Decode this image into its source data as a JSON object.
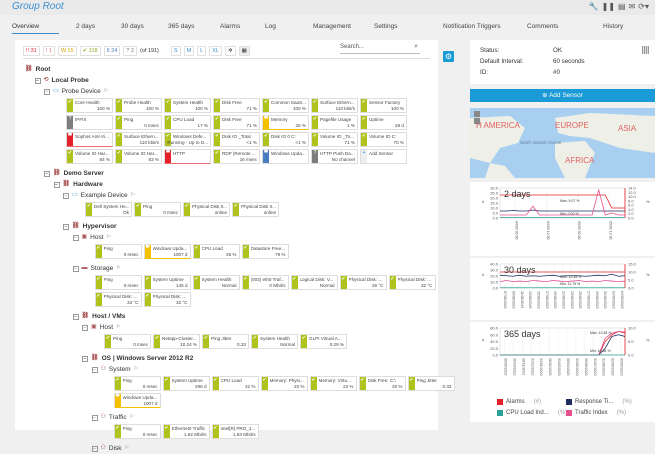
{
  "header": {
    "title": "Group Root",
    "tools": [
      "wrench-icon",
      "pause-icon",
      "export-icon",
      "mail-icon",
      "refresh-icon"
    ]
  },
  "tabs": [
    "Overview",
    "2 days",
    "30 days",
    "365 days",
    "Alarms",
    "Log",
    "Management",
    "Settings",
    "Notification Triggers",
    "Comments",
    "History"
  ],
  "toolbar": {
    "counts": [
      {
        "label": "!! 31",
        "color": "#e4202a"
      },
      {
        "label": "! 1",
        "color": "#e87070"
      },
      {
        "label": "W 15",
        "color": "#d9a400"
      },
      {
        "label": "✔ 118",
        "color": "#8aa51a"
      },
      {
        "label": "II 24",
        "color": "#4a7cc0"
      },
      {
        "label": "? 2",
        "color": "#777"
      }
    ],
    "total": "(of 191)",
    "sizes": [
      "S",
      "M",
      "L",
      "XL"
    ],
    "search_placeholder": "Search..."
  },
  "tree": [
    {
      "label": "Root",
      "depth": 0,
      "icon": "group",
      "bold": true
    },
    {
      "label": "Local Probe",
      "depth": 1,
      "icon": "probe",
      "bold": true
    },
    {
      "label": "Probe Device",
      "depth": 2,
      "icon": "device",
      "flag": true,
      "sensors": [
        [
          "ok",
          "Core Health",
          "100 %"
        ],
        [
          "ok",
          "Probe Health",
          "100 %"
        ],
        [
          "ok",
          "System Health",
          "100 %"
        ],
        [
          "ok",
          "Disk Free",
          "71 %"
        ],
        [
          "ok",
          "Common SaaS...",
          "100 %"
        ],
        [
          "ok",
          "Surface Ethern...",
          "110 kbit/s"
        ],
        [
          "ok",
          "Sensor Factory",
          "100 %"
        ],
        [
          "unknown",
          "IPFIX",
          ""
        ],
        [
          "ok",
          "Ping",
          "0 msec"
        ],
        [
          "ok",
          "CPU Load",
          "17 %"
        ],
        [
          "ok",
          "Disk Free",
          "71 %"
        ],
        [
          "warn",
          "Memory",
          "26 %"
        ],
        [
          "ok",
          "Pagefile Usage",
          "1 %"
        ],
        [
          "ok",
          "Uptime",
          "26 d"
        ],
        [
          "down",
          "Sophos Anti-Vi...",
          ""
        ],
        [
          "ok",
          "Surface Ethern...",
          "110 kbit/s"
        ],
        [
          "ok",
          "Windows Defe...",
          "Running - Up to D..."
        ],
        [
          "ok",
          "Disk IO _Total",
          "<1 %"
        ],
        [
          "ok",
          "Disk IO 0 C:",
          "<1 %"
        ],
        [
          "ok",
          "Volume IO _To...",
          "71 %"
        ],
        [
          "ok",
          "Volume IO C:",
          "70 %"
        ],
        [
          "ok",
          "Volume IO Har...",
          "84 %"
        ],
        [
          "ok",
          "Volume IO Har...",
          "83 %"
        ],
        [
          "down",
          "HTTP",
          ""
        ],
        [
          "ok",
          "RDP (Remote ...",
          "16 msec"
        ],
        [
          "paused",
          "Windows Upda...",
          ""
        ],
        [
          "unknown",
          "HTTP Push Da...",
          "No channel"
        ],
        [
          "add",
          "Add Sensor",
          ""
        ]
      ]
    },
    {
      "label": "Demo Server",
      "depth": 2,
      "icon": "group",
      "bold": true
    },
    {
      "label": "Hardware",
      "depth": 3,
      "icon": "group",
      "bold": true
    },
    {
      "label": "Example Device",
      "depth": 4,
      "icon": "device",
      "flag": true,
      "sensors": [
        [
          "ok",
          "Dell System He...",
          "Ok"
        ],
        [
          "ok",
          "Ping",
          "0 msec"
        ],
        [
          "ok",
          "Physical Disk 0...",
          "online"
        ],
        [
          "ok",
          "Physical Disk 0...",
          "online"
        ]
      ]
    },
    {
      "label": "Hypervisor",
      "depth": 4,
      "icon": "group",
      "bold": true
    },
    {
      "label": "Host",
      "depth": 5,
      "icon": "server",
      "flag": true,
      "sensors": [
        [
          "ok",
          "Ping",
          "0 msec"
        ],
        [
          "warn",
          "Windows Upda...",
          "1007 d"
        ],
        [
          "ok",
          "CPU Load",
          "35 %"
        ],
        [
          "ok",
          "Datastore Free...",
          "79 %"
        ]
      ]
    },
    {
      "label": "Storage",
      "depth": 5,
      "icon": "storage",
      "flag": true,
      "sensors": [
        [
          "ok",
          "Ping",
          "0 msec"
        ],
        [
          "ok",
          "System Uptime",
          "145 d"
        ],
        [
          "ok",
          "System Health",
          "Normal"
        ],
        [
          "ok",
          "(003) eth0 Traf...",
          "0 Mbit/s"
        ],
        [
          "ok",
          "Logical Disk: V...",
          "Normal"
        ],
        [
          "ok",
          "Physical Disk: ...",
          "26 °C"
        ],
        [
          "ok",
          "Physical Disk: ...",
          "32 °C"
        ],
        [
          "ok",
          "Physical Disk: ...",
          "33 °C"
        ],
        [
          "ok",
          "Physical Disk: ...",
          "32 °C"
        ]
      ]
    },
    {
      "label": "Host / VMs",
      "depth": 5,
      "icon": "group",
      "bold": true
    },
    {
      "label": "Host",
      "depth": 6,
      "icon": "server",
      "flag": true,
      "sensors": [
        [
          "ok",
          "Ping",
          "0 msec"
        ],
        [
          "ok",
          "Netapp-Cluster...",
          "10.24 %"
        ],
        [
          "ok",
          "Ping Jitter",
          "0.33"
        ],
        [
          "ok",
          "System Health",
          "Normal"
        ],
        [
          "ok",
          "GLPI Virtual A...",
          "0.29 %"
        ]
      ]
    },
    {
      "label": "OS | Windows Server 2012 R2",
      "depth": 6,
      "icon": "group",
      "bold": true
    },
    {
      "label": "System",
      "depth": 7,
      "icon": "users",
      "flag": true,
      "sensors": [
        [
          "ok",
          "Ping",
          "0 msec"
        ],
        [
          "ok",
          "System Uptime",
          "298 d"
        ],
        [
          "ok",
          "CPU Load",
          "31 %"
        ],
        [
          "ok",
          "Memory: Physi...",
          "20 %"
        ],
        [
          "ok",
          "Memory: Virtu...",
          "22 %"
        ],
        [
          "ok",
          "Disk Free: C:\\",
          "30 %"
        ],
        [
          "ok",
          "Ping Jitter",
          "0.33"
        ],
        [
          "warn",
          "Windows Upda...",
          "1007 d"
        ]
      ]
    },
    {
      "label": "Traffic",
      "depth": 7,
      "icon": "users",
      "flag": true,
      "sensors": [
        [
          "ok",
          "Ping",
          "0 msec"
        ],
        [
          "ok",
          "Ethernet0 Traffic",
          "1.62 Mbit/s"
        ],
        [
          "ok",
          "Intel[R] PRO_1...",
          "1.63 Mbit/s"
        ]
      ]
    },
    {
      "label": "Disk",
      "depth": 7,
      "icon": "users",
      "flag": true
    }
  ],
  "status_colors": {
    "ok": "#b0c21c",
    "warn": "#f5c000",
    "down": "#e4202a",
    "unknown": "#7d7d7d",
    "paused": "#4a7cc0",
    "add": "#eeeeee"
  },
  "info": {
    "rows": [
      {
        "label": "Status:",
        "value": "OK"
      },
      {
        "label": "Default Interval:",
        "value": "60 seconds"
      },
      {
        "label": "ID:",
        "value": "#0"
      }
    ],
    "add_sensor": "Add Sensor"
  },
  "map": {
    "labels": [
      "H AMERICA",
      "EUROPE",
      "ASIA",
      "North Atlantic Ocean",
      "AFRICA"
    ]
  },
  "chart_data": [
    {
      "type": "line",
      "title": "2 days",
      "ylim_left": [
        0,
        30
      ],
      "ylim_right": [
        0,
        14
      ],
      "yticks_left": [
        "30.0",
        "25.0",
        "20.0",
        "15.0",
        "10.0",
        "5.0",
        "0.0"
      ],
      "yticks_right": [
        "14.0",
        "12.0",
        "10.0",
        "8.0",
        "6.0",
        "4.0",
        "2.0",
        "0.0"
      ],
      "ylabel_left": "#",
      "ylabel_right": "%",
      "xticks": [
        "04/09 00:00",
        "04/09 12:00",
        "05/09 00:00",
        "05/09 12:00"
      ],
      "annotations": [
        "Max: 9.07 %",
        "Min: 0.00 %"
      ],
      "series": [
        {
          "key": "alarms",
          "values": [
            23,
            23,
            23,
            23,
            23,
            23,
            23,
            23,
            23,
            23,
            23,
            23,
            23,
            23,
            23,
            23,
            23,
            10,
            10,
            10
          ]
        },
        {
          "key": "response",
          "values": [
            7,
            7,
            7.5,
            7,
            7,
            8,
            7,
            7,
            7,
            7,
            7,
            7,
            7,
            7,
            7,
            7,
            7,
            7,
            7,
            7
          ]
        },
        {
          "key": "traffic",
          "values": [
            3,
            3,
            3,
            3,
            3,
            12,
            3,
            3,
            3,
            3,
            3,
            3,
            3,
            3,
            3,
            28,
            3,
            5,
            3,
            3
          ]
        },
        {
          "key": "cpu",
          "values": [
            0.5,
            0.5,
            0.5,
            0.5,
            0.5,
            0.5,
            0.5,
            0.5,
            0.5,
            0.5,
            0.5,
            0.5,
            0.5,
            0.5,
            0.5,
            0.5,
            0.5,
            0.5,
            0.5,
            0.5
          ]
        }
      ]
    },
    {
      "type": "line",
      "title": "30 days",
      "ylim_left": [
        0,
        45
      ],
      "ylim_right": [
        0,
        15
      ],
      "yticks_left": [
        "40.0",
        "30.0",
        "20.0",
        "10.0",
        "0.0"
      ],
      "yticks_right": [
        "15.0",
        "10.0",
        "5.0",
        "0.0"
      ],
      "ylabel_left": "#",
      "ylabel_right": "%",
      "xticks": [
        "07/08/2023",
        "09/08/2023",
        "11/08/2023",
        "13/08/2023",
        "15/08/2023",
        "17/08/2023",
        "19/08/2023",
        "21/08/2023",
        "23/08/2023",
        "25/08/2023",
        "27/08/2023",
        "29/08/2023",
        "31/08/2023",
        "02/09/2023",
        "04/09/2023"
      ],
      "annotations": [
        "Max: 12.48 %",
        "Min: 11.75 %"
      ],
      "series": [
        {
          "key": "alarms",
          "values": [
            30,
            30,
            30,
            30,
            30,
            30,
            30,
            30,
            30,
            30,
            30,
            30,
            30,
            30,
            30,
            30,
            30,
            30,
            30,
            30
          ]
        },
        {
          "key": "response",
          "values": [
            24,
            23,
            22,
            24,
            22,
            23,
            22,
            23,
            24,
            22,
            23,
            23,
            23,
            22,
            23,
            24,
            23,
            26,
            22,
            23
          ]
        },
        {
          "key": "traffic",
          "values": [
            12,
            14,
            12,
            13,
            12,
            14,
            13,
            12,
            14,
            13,
            12,
            13,
            14,
            12,
            13,
            12,
            14,
            13,
            12,
            13
          ]
        },
        {
          "key": "cpu",
          "values": [
            0.5,
            0.5,
            0.5,
            0.5,
            0.5,
            0.5,
            0.5,
            0.5,
            0.5,
            0.5,
            0.5,
            0.5,
            0.5,
            0.5,
            0.5,
            0.5,
            0.5,
            0.5,
            0.5,
            0.5
          ]
        }
      ]
    },
    {
      "type": "line",
      "title": "365 days",
      "ylim_left": [
        0,
        80
      ],
      "ylim_right": [
        0,
        15
      ],
      "yticks_left": [
        "80.0",
        "60.0",
        "40.0",
        "20.0",
        "0.0"
      ],
      "yticks_right": [
        "10.0",
        "5.0",
        "0.0"
      ],
      "ylabel_left": "#",
      "ylabel_right": "%",
      "xticks": [
        "30/09/2022",
        "30/10/2022",
        "30/11/2022",
        "31/12/2022",
        "31/01/2023",
        "28/02/2023",
        "31/03/2023",
        "30/04/2023",
        "31/05/2023",
        "30/06/2023",
        "31/07/2023",
        "31/08/2023",
        "02/09/2023",
        "03/09/2023"
      ],
      "annotations": [
        "Max: 12.48 %",
        "Min: 10.65 %"
      ],
      "series": [
        {
          "key": "alarms",
          "values": [
            0,
            0,
            0,
            0,
            0,
            0,
            0,
            0,
            0,
            0,
            0,
            0,
            0,
            0,
            0,
            0,
            40,
            60,
            70,
            65
          ]
        },
        {
          "key": "response",
          "values": [
            0,
            0,
            0,
            0,
            0,
            0,
            0,
            0,
            0,
            0,
            0,
            0,
            0,
            0,
            0,
            0,
            20,
            55,
            60,
            55
          ]
        },
        {
          "key": "traffic",
          "values": [
            0,
            0,
            0,
            0,
            0,
            0,
            0,
            0,
            0,
            0,
            0,
            0,
            0,
            0,
            0,
            0,
            50,
            65,
            70,
            68
          ]
        },
        {
          "key": "cpu",
          "values": [
            0,
            0,
            0,
            0,
            0,
            0,
            0,
            0,
            0,
            0,
            0,
            0,
            0,
            0,
            0,
            0,
            0,
            0,
            0,
            0
          ]
        }
      ]
    }
  ],
  "legend": [
    {
      "key": "alarms",
      "label": "Alarms",
      "unit": "(#)",
      "color": "#e4202a"
    },
    {
      "key": "response",
      "label": "Response Ti...",
      "unit": "(%)",
      "color": "#1c2e5e"
    },
    {
      "key": "cpu",
      "label": "CPU Load Ind...",
      "unit": "(%)",
      "color": "#2aa198"
    },
    {
      "key": "traffic",
      "label": "Traffic Index",
      "unit": "(%)",
      "color": "#e6508f"
    }
  ]
}
